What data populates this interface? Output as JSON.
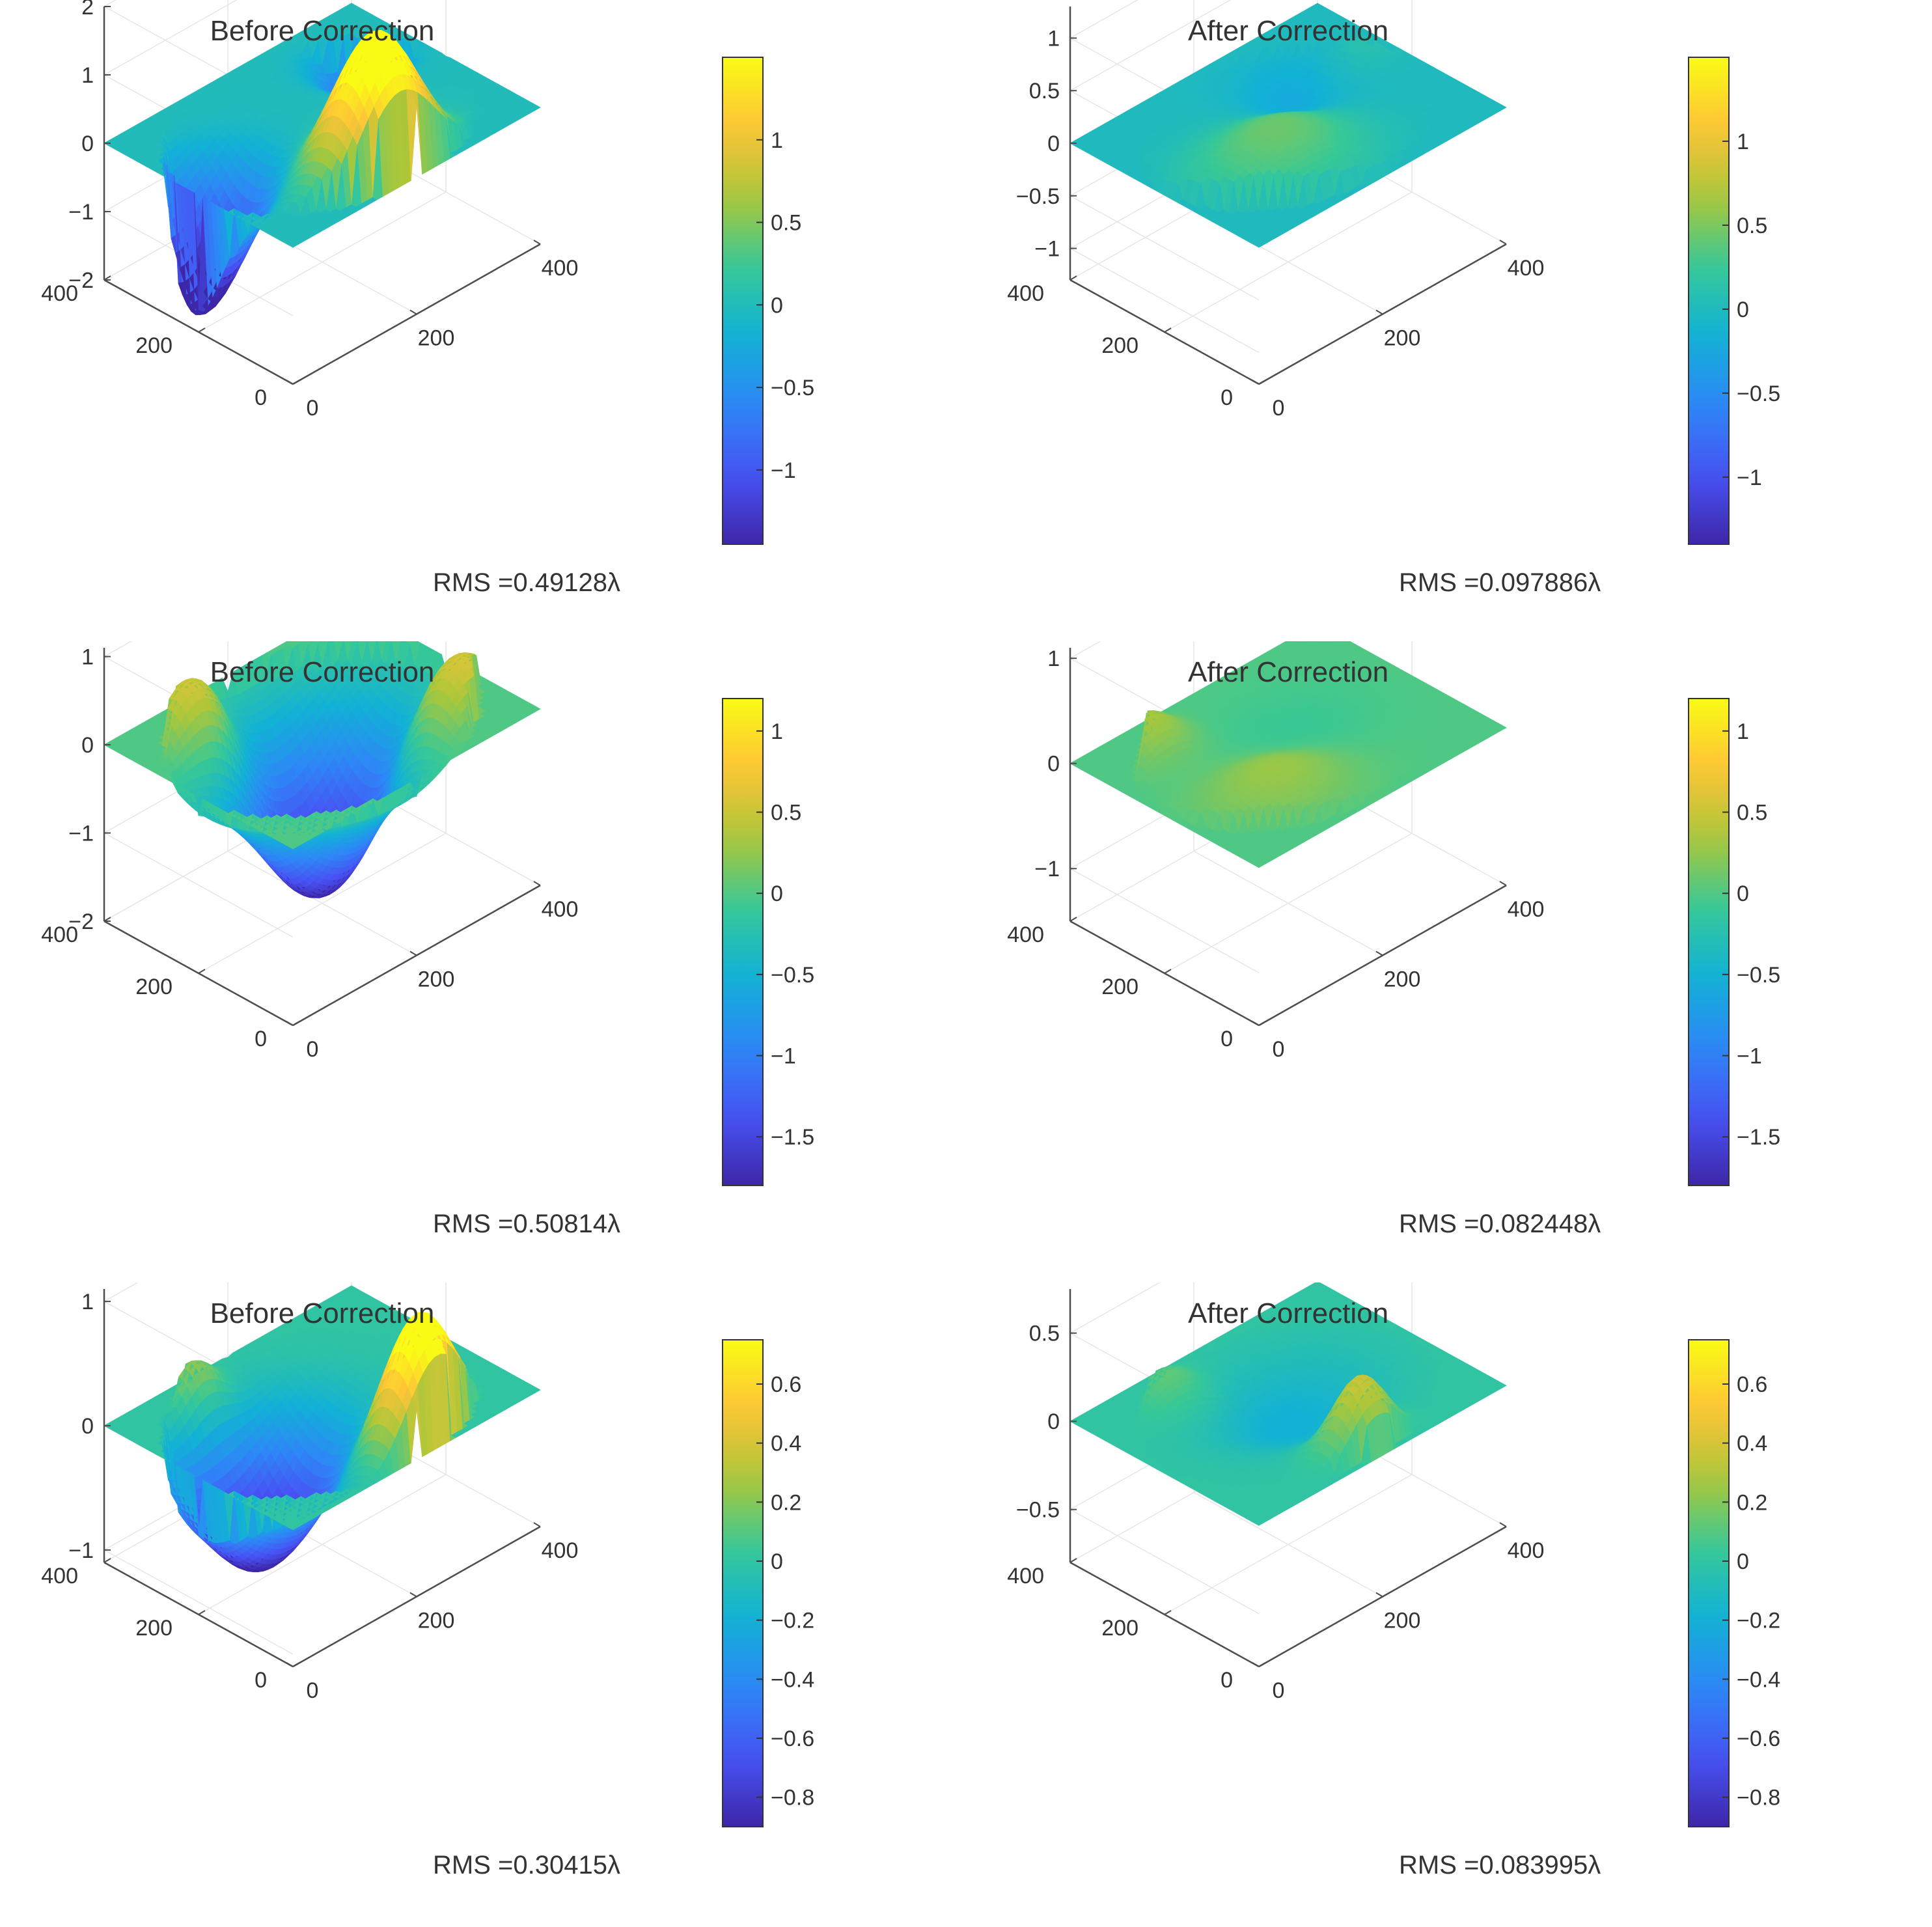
{
  "figure": {
    "rows": 3,
    "cols": 2
  },
  "chart_data": [
    {
      "type": "surface",
      "title": "Before Correction",
      "x_ticks": [
        "0",
        "200",
        "400"
      ],
      "y_ticks": [
        "0",
        "200",
        "400"
      ],
      "z_ticks": [
        "2",
        "1",
        "0",
        "−1",
        "−2"
      ],
      "z_tick_values": [
        2,
        1,
        0,
        -1,
        -2
      ],
      "zlim": [
        -2,
        2
      ],
      "colorbar": {
        "ticks": [
          "1",
          "0.5",
          "0",
          "−0.5",
          "−1"
        ],
        "tick_values": [
          1,
          0.5,
          0,
          -0.5,
          -1
        ],
        "range": [
          -1.45,
          1.5
        ]
      },
      "rms_label": "RMS =0.49128λ",
      "rms": 0.49128,
      "shape": {
        "aperture": 0.5,
        "peak": 2.0,
        "peak_pos": [
          0.15,
          0.45
        ],
        "peak_sigma": 0.14,
        "trough": -1.9,
        "trough_pos": [
          0.55,
          0.05
        ],
        "trough_sigma": 0.14,
        "side": -0.9,
        "side_pos": [
          0.75,
          0.85
        ],
        "side_sigma": 0.1
      }
    },
    {
      "type": "surface",
      "title": "After Correction",
      "x_ticks": [
        "0",
        "200",
        "400"
      ],
      "y_ticks": [
        "0",
        "200",
        "400"
      ],
      "z_ticks": [
        "1",
        "0.5",
        "0",
        "−0.5",
        "−1"
      ],
      "z_tick_values": [
        1,
        0.5,
        0,
        -0.5,
        -1
      ],
      "zlim": [
        -1.3,
        1.3
      ],
      "colorbar": {
        "ticks": [
          "1",
          "0.5",
          "0",
          "−0.5",
          "−1"
        ],
        "tick_values": [
          1,
          0.5,
          0,
          -0.5,
          -1
        ],
        "range": [
          -1.4,
          1.5
        ]
      },
      "rms_label": "RMS =0.097886λ",
      "rms": 0.097886,
      "shape": {
        "aperture": 0.48,
        "peak": 0.45,
        "peak_pos": [
          0.3,
          0.3
        ],
        "peak_sigma": 0.2,
        "trough": -0.25,
        "trough_pos": [
          0.7,
          0.7
        ],
        "trough_sigma": 0.15,
        "side": 0.2,
        "side_pos": [
          0.65,
          0.9
        ],
        "side_sigma": 0.1
      }
    },
    {
      "type": "surface",
      "title": "Before Correction",
      "x_ticks": [
        "0",
        "200",
        "400"
      ],
      "y_ticks": [
        "0",
        "200",
        "400"
      ],
      "z_ticks": [
        "1",
        "0",
        "−1",
        "−2"
      ],
      "z_tick_values": [
        1,
        0,
        -1,
        -2
      ],
      "zlim": [
        -2,
        1.1
      ],
      "colorbar": {
        "ticks": [
          "1",
          "0.5",
          "0",
          "−0.5",
          "−1",
          "−1.5"
        ],
        "tick_values": [
          1,
          0.5,
          0,
          -0.5,
          -1,
          -1.5
        ],
        "range": [
          -1.8,
          1.2
        ]
      },
      "rms_label": "RMS =0.50814λ",
      "rms": 0.50814,
      "shape": {
        "aperture": 0.5,
        "peak": 1.0,
        "peak_pos": [
          0.25,
          0.8
        ],
        "peak_sigma": 0.14,
        "trough": -1.9,
        "trough_pos": [
          0.5,
          0.5
        ],
        "trough_sigma": 0.24,
        "side": 1.0,
        "side_pos": [
          0.8,
          0.25
        ],
        "side_sigma": 0.12
      }
    },
    {
      "type": "surface",
      "title": "After Correction",
      "x_ticks": [
        "0",
        "200",
        "400"
      ],
      "y_ticks": [
        "0",
        "200",
        "400"
      ],
      "z_ticks": [
        "1",
        "0",
        "−1"
      ],
      "z_tick_values": [
        1,
        0,
        -1
      ],
      "zlim": [
        -1.5,
        1.1
      ],
      "colorbar": {
        "ticks": [
          "1",
          "0.5",
          "0",
          "−0.5",
          "−1",
          "−1.5"
        ],
        "tick_values": [
          1,
          0.5,
          0,
          -0.5,
          -1,
          -1.5
        ],
        "range": [
          -1.8,
          1.2
        ]
      },
      "rms_label": "RMS =0.082448λ",
      "rms": 0.082448,
      "shape": {
        "aperture": 0.48,
        "peak": 0.3,
        "peak_pos": [
          0.3,
          0.3
        ],
        "peak_sigma": 0.18,
        "trough": -0.1,
        "trough_pos": [
          0.55,
          0.55
        ],
        "trough_sigma": 0.2,
        "side": 0.35,
        "side_pos": [
          0.85,
          0.2
        ],
        "side_sigma": 0.1
      }
    },
    {
      "type": "surface",
      "title": "Before Correction",
      "x_ticks": [
        "0",
        "200",
        "400"
      ],
      "y_ticks": [
        "0",
        "200",
        "400"
      ],
      "z_ticks": [
        "1",
        "0",
        "−1"
      ],
      "z_tick_values": [
        1,
        0,
        -1
      ],
      "zlim": [
        -1.1,
        1.1
      ],
      "colorbar": {
        "ticks": [
          "0.6",
          "0.4",
          "0.2",
          "0",
          "−0.2",
          "−0.4",
          "−0.6",
          "−0.8"
        ],
        "tick_values": [
          0.6,
          0.4,
          0.2,
          0,
          -0.2,
          -0.4,
          -0.6,
          -0.8
        ],
        "range": [
          -0.9,
          0.75
        ]
      },
      "rms_label": "RMS =0.30415λ",
      "rms": 0.30415,
      "shape": {
        "aperture": 0.5,
        "peak": 1.0,
        "peak_pos": [
          0.12,
          0.6
        ],
        "peak_sigma": 0.12,
        "trough": -1.0,
        "trough_pos": [
          0.5,
          0.25
        ],
        "trough_sigma": 0.2,
        "side": 0.35,
        "side_pos": [
          0.9,
          0.3
        ],
        "side_sigma": 0.08
      }
    },
    {
      "type": "surface",
      "title": "After Correction",
      "x_ticks": [
        "0",
        "200",
        "400"
      ],
      "y_ticks": [
        "0",
        "200",
        "400"
      ],
      "z_ticks": [
        "0.5",
        "0",
        "−0.5"
      ],
      "z_tick_values": [
        0.5,
        0,
        -0.5
      ],
      "zlim": [
        -0.8,
        0.75
      ],
      "colorbar": {
        "ticks": [
          "0.6",
          "0.4",
          "0.2",
          "0",
          "−0.2",
          "−0.4",
          "−0.6",
          "−0.8"
        ],
        "tick_values": [
          0.6,
          0.4,
          0.2,
          0,
          -0.2,
          -0.4,
          -0.6,
          -0.8
        ],
        "range": [
          -0.9,
          0.75
        ]
      },
      "rms_label": "RMS =0.083995λ",
      "rms": 0.083995,
      "shape": {
        "aperture": 0.48,
        "peak": 0.4,
        "peak_pos": [
          0.12,
          0.5
        ],
        "peak_sigma": 0.09,
        "trough": -0.2,
        "trough_pos": [
          0.55,
          0.55
        ],
        "trough_sigma": 0.2,
        "side": 0.15,
        "side_pos": [
          0.85,
          0.3
        ],
        "side_sigma": 0.1
      }
    }
  ]
}
